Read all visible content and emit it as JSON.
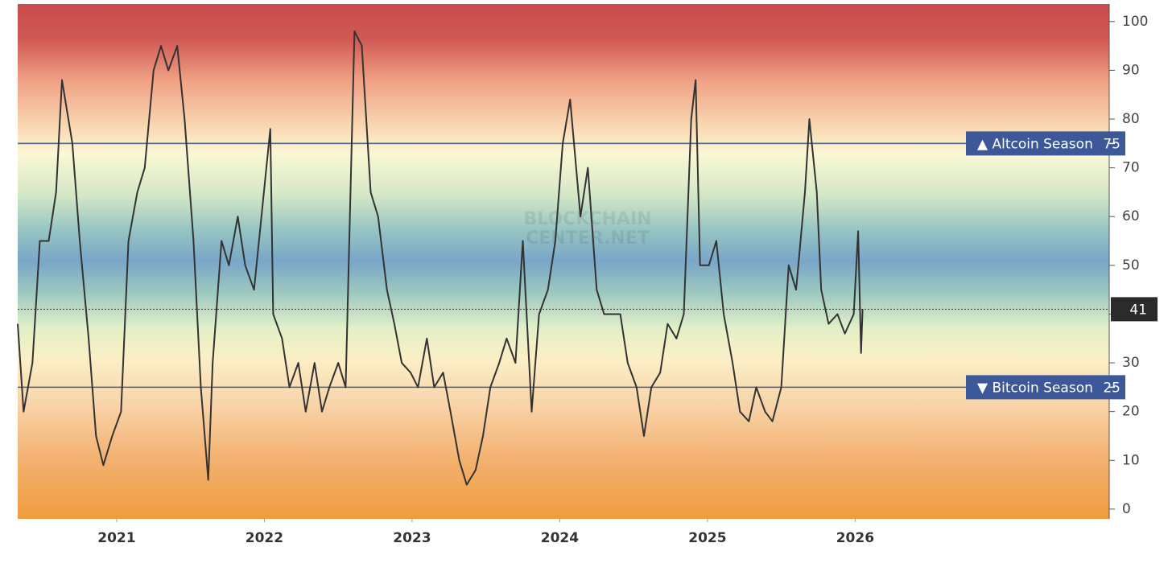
{
  "chart_data": {
    "type": "line",
    "x": [
      2020.33,
      2020.37,
      2020.43,
      2020.48,
      2020.54,
      2020.59,
      2020.63,
      2020.7,
      2020.75,
      2020.81,
      2020.86,
      2020.91,
      2020.97,
      2021.03,
      2021.08,
      2021.14,
      2021.19,
      2021.25,
      2021.3,
      2021.35,
      2021.41,
      2021.46,
      2021.52,
      2021.57,
      2021.62,
      2021.65,
      2021.71,
      2021.76,
      2021.82,
      2021.87,
      2021.93,
      2021.98,
      2022.04,
      2022.06,
      2022.12,
      2022.17,
      2022.23,
      2022.28,
      2022.34,
      2022.39,
      2022.44,
      2022.5,
      2022.55,
      2022.61,
      2022.66,
      2022.72,
      2022.77,
      2022.83,
      2022.88,
      2022.93,
      2022.99,
      2023.04,
      2023.1,
      2023.15,
      2023.21,
      2023.26,
      2023.32,
      2023.37,
      2023.43,
      2023.48,
      2023.53,
      2023.59,
      2023.64,
      2023.7,
      2023.75,
      2023.81,
      2023.86,
      2023.92,
      2023.97,
      2024.02,
      2024.07,
      2024.14,
      2024.19,
      2024.25,
      2024.3,
      2024.35,
      2024.41,
      2024.46,
      2024.52,
      2024.57,
      2024.62,
      2024.68,
      2024.73,
      2024.79,
      2024.84,
      2024.89,
      2024.92,
      2024.95,
      2025.01,
      2025.06,
      2025.11,
      2025.17,
      2025.22,
      2025.28,
      2025.33,
      2025.39,
      2025.44,
      2025.5,
      2025.55,
      2025.6,
      2025.66,
      2025.69,
      2025.74,
      2025.77,
      2025.82,
      2025.88,
      2025.93,
      2025.99,
      2026.02,
      2026.04,
      2026.05
    ],
    "series": [
      {
        "color": "#333333",
        "values": [
          38,
          20,
          30,
          55,
          55,
          65,
          88,
          75,
          55,
          35,
          15,
          9,
          15,
          20,
          55,
          65,
          70,
          90,
          95,
          90,
          95,
          80,
          55,
          25,
          6,
          30,
          55,
          50,
          60,
          50,
          45,
          60,
          78,
          40,
          35,
          25,
          30,
          20,
          30,
          20,
          25,
          30,
          25,
          98,
          95,
          65,
          60,
          45,
          38,
          30,
          28,
          25,
          35,
          25,
          28,
          20,
          10,
          5,
          8,
          15,
          25,
          30,
          35,
          30,
          55,
          20,
          40,
          45,
          55,
          75,
          84,
          60,
          70,
          45,
          40,
          40,
          40,
          30,
          25,
          15,
          25,
          28,
          38,
          35,
          40,
          80,
          88,
          50,
          50,
          55,
          40,
          30,
          20,
          18,
          25,
          20,
          18,
          25,
          50,
          45,
          65,
          80,
          65,
          45,
          38,
          40,
          36,
          40,
          57,
          32,
          41
        ]
      }
    ],
    "xlim": [
      2020.33,
      2027.72
    ],
    "xticks": [
      2021,
      2022,
      2023,
      2024,
      2025,
      2026
    ],
    "ylim": [
      -2,
      103.6
    ],
    "yticks": [
      0,
      10,
      20,
      30,
      40,
      50,
      60,
      70,
      80,
      90,
      100
    ],
    "reference_lines": [
      {
        "value": 75,
        "label": "▲ Altcoin Season"
      },
      {
        "value": 25,
        "label": "▼ Bitcoin Season"
      }
    ],
    "watermark": [
      "BLOCKCHAIN",
      "CENTER.NET"
    ]
  }
}
